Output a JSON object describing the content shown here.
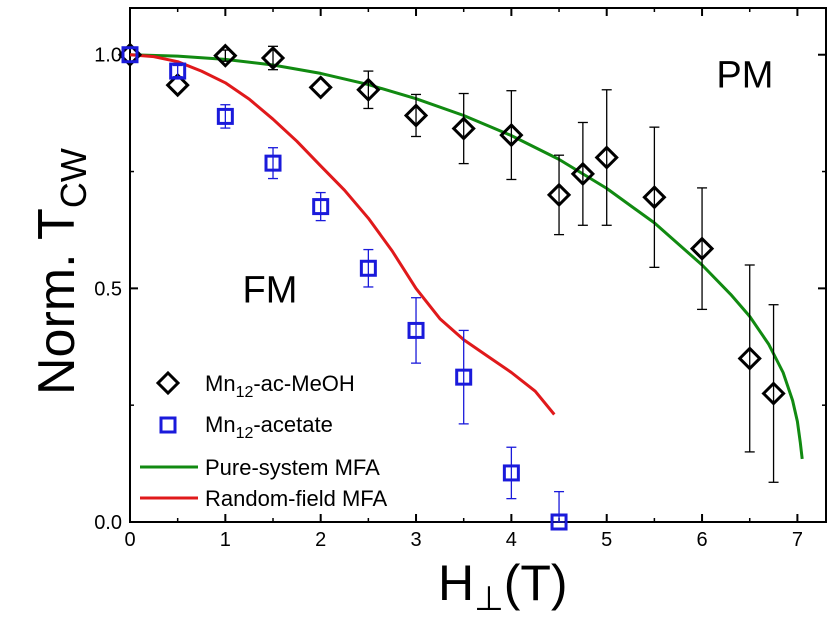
{
  "chart_data": {
    "type": "scatter",
    "xlabel": {
      "main": "H",
      "sub": "⊥",
      "suffix": "(T)"
    },
    "ylabel": {
      "main": "Norm. T",
      "sub": "CW"
    },
    "xlim": [
      0,
      7.3
    ],
    "ylim": [
      0,
      1.1
    ],
    "x_ticks": [
      {
        "value": 0,
        "label": "0"
      },
      {
        "value": 1,
        "label": "1"
      },
      {
        "value": 2,
        "label": "2"
      },
      {
        "value": 3,
        "label": "3"
      },
      {
        "value": 4,
        "label": "4"
      },
      {
        "value": 5,
        "label": "5"
      },
      {
        "value": 6,
        "label": "6"
      },
      {
        "value": 7,
        "label": "7"
      }
    ],
    "y_ticks": [
      {
        "value": 0,
        "label": "0.0"
      },
      {
        "value": 0.5,
        "label": "0.5"
      },
      {
        "value": 1.0,
        "label": "1.0"
      }
    ],
    "annotations": [
      {
        "text": "PM",
        "x": 6.15,
        "y": 0.96
      },
      {
        "text": "FM",
        "x": 1.18,
        "y": 0.5
      }
    ],
    "legend_position": "bottom-left",
    "series": [
      {
        "name": "Mn₁₂-ac-MeOH",
        "name_parts": {
          "pre": "Mn",
          "sub": "12",
          "post": "-ac-MeOH"
        },
        "kind": "points",
        "marker": "diamond",
        "color": "#000000",
        "points": [
          {
            "x": 0.0,
            "y": 1.0,
            "err": 0.0
          },
          {
            "x": 0.5,
            "y": 0.935,
            "err": 0.0
          },
          {
            "x": 1.0,
            "y": 0.998,
            "err": 0.012
          },
          {
            "x": 1.5,
            "y": 0.993,
            "err": 0.025
          },
          {
            "x": 2.0,
            "y": 0.93,
            "err": 0.0
          },
          {
            "x": 2.5,
            "y": 0.925,
            "err": 0.04
          },
          {
            "x": 3.0,
            "y": 0.87,
            "err": 0.045
          },
          {
            "x": 3.5,
            "y": 0.842,
            "err": 0.075
          },
          {
            "x": 4.0,
            "y": 0.828,
            "err": 0.095
          },
          {
            "x": 4.5,
            "y": 0.7,
            "err": 0.085
          },
          {
            "x": 4.75,
            "y": 0.745,
            "err": 0.11
          },
          {
            "x": 5.0,
            "y": 0.78,
            "err": 0.145
          },
          {
            "x": 5.5,
            "y": 0.695,
            "err": 0.15
          },
          {
            "x": 6.0,
            "y": 0.585,
            "err": 0.13
          },
          {
            "x": 6.5,
            "y": 0.35,
            "err": 0.2
          },
          {
            "x": 6.75,
            "y": 0.275,
            "err": 0.19
          }
        ]
      },
      {
        "name": "Mn₁₂-acetate",
        "name_parts": {
          "pre": "Mn",
          "sub": "12",
          "post": "-acetate"
        },
        "kind": "points",
        "marker": "square",
        "color": "#1a1adb",
        "points": [
          {
            "x": 0.0,
            "y": 1.0,
            "err": 0.0
          },
          {
            "x": 0.5,
            "y": 0.965,
            "err": 0.012
          },
          {
            "x": 1.0,
            "y": 0.868,
            "err": 0.025
          },
          {
            "x": 1.5,
            "y": 0.768,
            "err": 0.033
          },
          {
            "x": 2.0,
            "y": 0.675,
            "err": 0.03
          },
          {
            "x": 2.5,
            "y": 0.543,
            "err": 0.04
          },
          {
            "x": 3.0,
            "y": 0.41,
            "err": 0.07
          },
          {
            "x": 3.5,
            "y": 0.31,
            "err": 0.1
          },
          {
            "x": 4.0,
            "y": 0.105,
            "err": 0.055
          },
          {
            "x": 4.5,
            "y": 0.0,
            "err": 0.065
          }
        ]
      },
      {
        "name": "Pure-system MFA",
        "kind": "line",
        "color": "#118a11",
        "points": [
          {
            "x": 0.0,
            "y": 1.0
          },
          {
            "x": 0.5,
            "y": 0.997
          },
          {
            "x": 1.0,
            "y": 0.99
          },
          {
            "x": 1.5,
            "y": 0.978
          },
          {
            "x": 2.0,
            "y": 0.96
          },
          {
            "x": 2.5,
            "y": 0.936
          },
          {
            "x": 3.0,
            "y": 0.906
          },
          {
            "x": 3.5,
            "y": 0.87
          },
          {
            "x": 4.0,
            "y": 0.827
          },
          {
            "x": 4.5,
            "y": 0.776
          },
          {
            "x": 5.0,
            "y": 0.714
          },
          {
            "x": 5.5,
            "y": 0.64
          },
          {
            "x": 6.0,
            "y": 0.55
          },
          {
            "x": 6.3,
            "y": 0.487
          },
          {
            "x": 6.5,
            "y": 0.44
          },
          {
            "x": 6.7,
            "y": 0.38
          },
          {
            "x": 6.85,
            "y": 0.32
          },
          {
            "x": 6.95,
            "y": 0.26
          },
          {
            "x": 7.0,
            "y": 0.215
          },
          {
            "x": 7.03,
            "y": 0.17
          },
          {
            "x": 7.05,
            "y": 0.135
          }
        ]
      },
      {
        "name": "Random-field MFA",
        "kind": "line",
        "color": "#e0191b",
        "points": [
          {
            "x": 0.0,
            "y": 1.0
          },
          {
            "x": 0.25,
            "y": 0.996
          },
          {
            "x": 0.5,
            "y": 0.985
          },
          {
            "x": 0.75,
            "y": 0.965
          },
          {
            "x": 1.0,
            "y": 0.94
          },
          {
            "x": 1.25,
            "y": 0.905
          },
          {
            "x": 1.5,
            "y": 0.862
          },
          {
            "x": 1.75,
            "y": 0.815
          },
          {
            "x": 2.0,
            "y": 0.762
          },
          {
            "x": 2.25,
            "y": 0.71
          },
          {
            "x": 2.5,
            "y": 0.65
          },
          {
            "x": 2.75,
            "y": 0.58
          },
          {
            "x": 3.0,
            "y": 0.5
          },
          {
            "x": 3.25,
            "y": 0.435
          },
          {
            "x": 3.5,
            "y": 0.39
          },
          {
            "x": 3.75,
            "y": 0.355
          },
          {
            "x": 4.0,
            "y": 0.32
          },
          {
            "x": 4.25,
            "y": 0.28
          },
          {
            "x": 4.45,
            "y": 0.23
          }
        ]
      }
    ]
  }
}
